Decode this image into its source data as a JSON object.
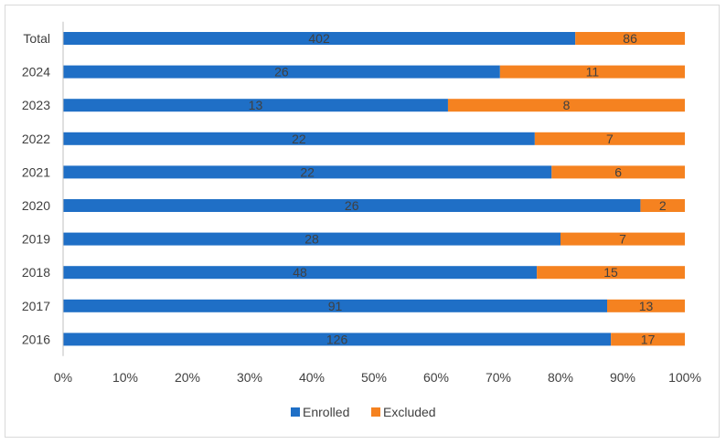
{
  "chart_data": {
    "type": "bar",
    "orientation": "horizontal",
    "stacking": "percent",
    "title": "",
    "xlabel": "",
    "ylabel": "",
    "categories": [
      "2016",
      "2017",
      "2018",
      "2019",
      "2020",
      "2021",
      "2022",
      "2023",
      "2024",
      "Total"
    ],
    "series": [
      {
        "name": "Enrolled",
        "color": "#1f6fc6",
        "values": [
          126,
          91,
          48,
          28,
          26,
          22,
          22,
          13,
          26,
          402
        ]
      },
      {
        "name": "Excluded",
        "color": "#f58220",
        "values": [
          17,
          13,
          15,
          7,
          2,
          6,
          7,
          8,
          11,
          86
        ]
      }
    ],
    "xlim": [
      0,
      100
    ],
    "x_ticks": [
      "0%",
      "10%",
      "20%",
      "30%",
      "40%",
      "50%",
      "60%",
      "70%",
      "80%",
      "90%",
      "100%"
    ],
    "grid": false,
    "legend_position": "bottom",
    "data_labels": true
  }
}
